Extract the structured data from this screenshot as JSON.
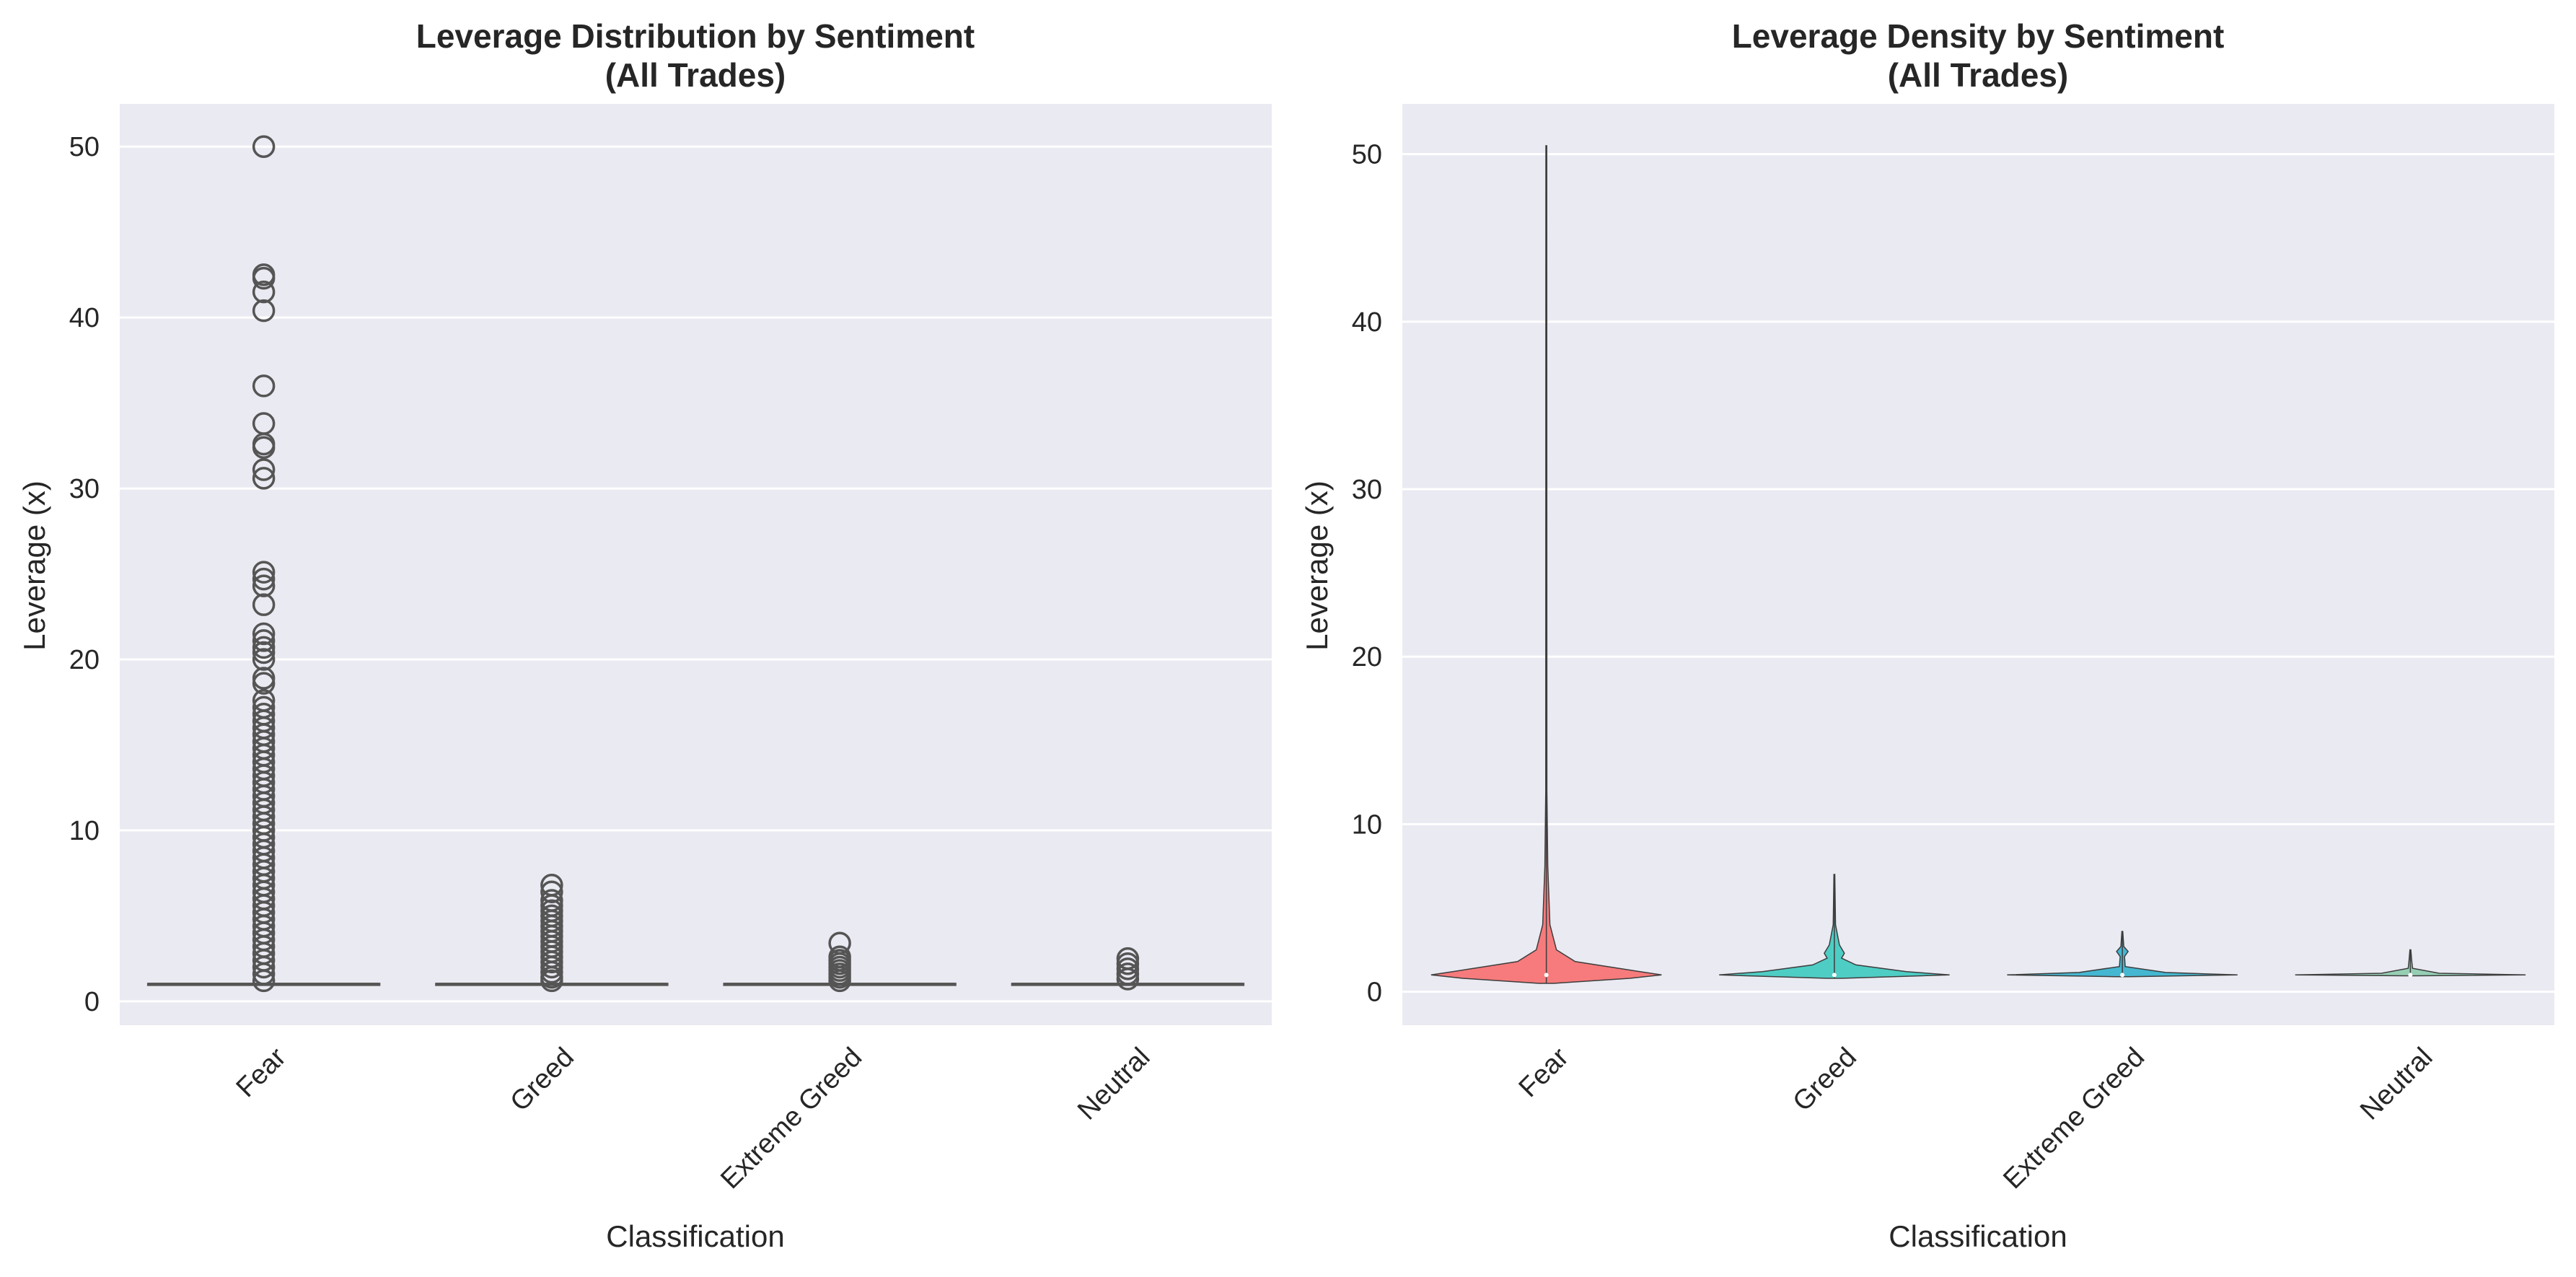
{
  "chart_data": [
    {
      "type": "box",
      "title_lines": [
        "Leverage Distribution by Sentiment",
        "(All Trades)"
      ],
      "xlabel": "Classification",
      "ylabel": "Leverage (x)",
      "ylim": [
        -1.4,
        52.5
      ],
      "yticks": [
        0,
        10,
        20,
        30,
        40,
        50
      ],
      "categories": [
        "Fear",
        "Greed",
        "Extreme Greed",
        "Neutral"
      ],
      "grid": true,
      "boxes": [
        {
          "category": "Fear",
          "q1": 1,
          "median": 1,
          "q3": 1,
          "whisker_low": 1,
          "whisker_high": 1,
          "outliers": [
            50,
            42.5,
            42.3,
            41.5,
            40.4,
            36,
            33.8,
            32.6,
            32.4,
            31.1,
            30.6,
            25.1,
            24.7,
            24.3,
            23.2,
            21.5,
            21.1,
            20.7,
            20.4,
            20,
            18.9,
            18.6,
            17.6,
            17.2,
            16.8,
            16.4,
            16,
            15.6,
            15.2,
            14.8,
            14.4,
            14,
            13.6,
            13.2,
            12.8,
            12.4,
            12,
            11.6,
            11.2,
            10.8,
            10.4,
            10,
            9.6,
            9.2,
            8.8,
            8.4,
            8,
            7.6,
            7.2,
            6.8,
            6.4,
            6,
            5.6,
            5.2,
            4.8,
            4.4,
            4,
            3.6,
            3.2,
            2.8,
            2.4,
            2,
            1.6,
            1.2
          ]
        },
        {
          "category": "Greed",
          "q1": 1,
          "median": 1,
          "q3": 1,
          "whisker_low": 1,
          "whisker_high": 1,
          "outliers": [
            6.8,
            6.4,
            5.9,
            5.6,
            5.3,
            5,
            4.7,
            4.4,
            4.1,
            3.8,
            3.5,
            3.2,
            2.9,
            2.6,
            2.3,
            2,
            1.7,
            1.4,
            1.2
          ]
        },
        {
          "category": "Extreme Greed",
          "q1": 1,
          "median": 1,
          "q3": 1,
          "whisker_low": 1,
          "whisker_high": 1,
          "outliers": [
            3.4,
            2.6,
            2.4,
            2.2,
            2,
            1.8,
            1.6,
            1.4,
            1.2
          ]
        },
        {
          "category": "Neutral",
          "q1": 1,
          "median": 1,
          "q3": 1,
          "whisker_low": 1,
          "whisker_high": 1,
          "outliers": [
            2.5,
            2.2,
            1.9,
            1.6,
            1.3
          ]
        }
      ],
      "colors": {
        "box_line": "#555555",
        "outlier_edge": "#555555",
        "background": "#eaeaf2",
        "grid": "#ffffff"
      }
    },
    {
      "type": "violin",
      "title_lines": [
        "Leverage Density by Sentiment",
        "(All Trades)"
      ],
      "xlabel": "Classification",
      "ylabel": "Leverage (x)",
      "ylim": [
        -2,
        53
      ],
      "yticks": [
        0,
        10,
        20,
        30,
        40,
        50
      ],
      "categories": [
        "Fear",
        "Greed",
        "Extreme Greed",
        "Neutral"
      ],
      "grid": true,
      "violins": [
        {
          "category": "Fear",
          "color": "#f77b7c",
          "min": 0.5,
          "max": 50.5,
          "median": 1,
          "profile": [
            [
              0.5,
              0.05
            ],
            [
              0.8,
              0.58
            ],
            [
              1,
              0.8
            ],
            [
              1.2,
              0.65
            ],
            [
              1.8,
              0.2
            ],
            [
              2.5,
              0.07
            ],
            [
              4,
              0.025
            ],
            [
              7.5,
              0.01
            ],
            [
              12,
              0.004
            ],
            [
              50.5,
              0.002
            ]
          ]
        },
        {
          "category": "Greed",
          "color": "#4ecdc4",
          "min": 0.8,
          "max": 7,
          "median": 1,
          "profile": [
            [
              0.8,
              0.05
            ],
            [
              1,
              0.8
            ],
            [
              1.2,
              0.5
            ],
            [
              1.6,
              0.15
            ],
            [
              2,
              0.05
            ],
            [
              2.3,
              0.07
            ],
            [
              2.8,
              0.035
            ],
            [
              4,
              0.008
            ],
            [
              7,
              0.002
            ]
          ]
        },
        {
          "category": "Extreme Greed",
          "color": "#45b7d1",
          "min": 0.9,
          "max": 3.6,
          "median": 1,
          "profile": [
            [
              0.9,
              0.05
            ],
            [
              1,
              0.8
            ],
            [
              1.15,
              0.3
            ],
            [
              1.5,
              0.02
            ],
            [
              2.1,
              0.015
            ],
            [
              2.4,
              0.04
            ],
            [
              2.7,
              0.01
            ],
            [
              3.6,
              0.002
            ]
          ]
        },
        {
          "category": "Neutral",
          "color": "#96ceb4",
          "min": 0.95,
          "max": 2.5,
          "median": 1,
          "profile": [
            [
              0.95,
              0.05
            ],
            [
              1,
              0.8
            ],
            [
              1.1,
              0.2
            ],
            [
              1.4,
              0.015
            ],
            [
              1.8,
              0.01
            ],
            [
              2.5,
              0.002
            ]
          ]
        }
      ],
      "colors": {
        "outline": "#3d3d3d",
        "background": "#eaeaf2",
        "grid": "#ffffff"
      }
    }
  ]
}
